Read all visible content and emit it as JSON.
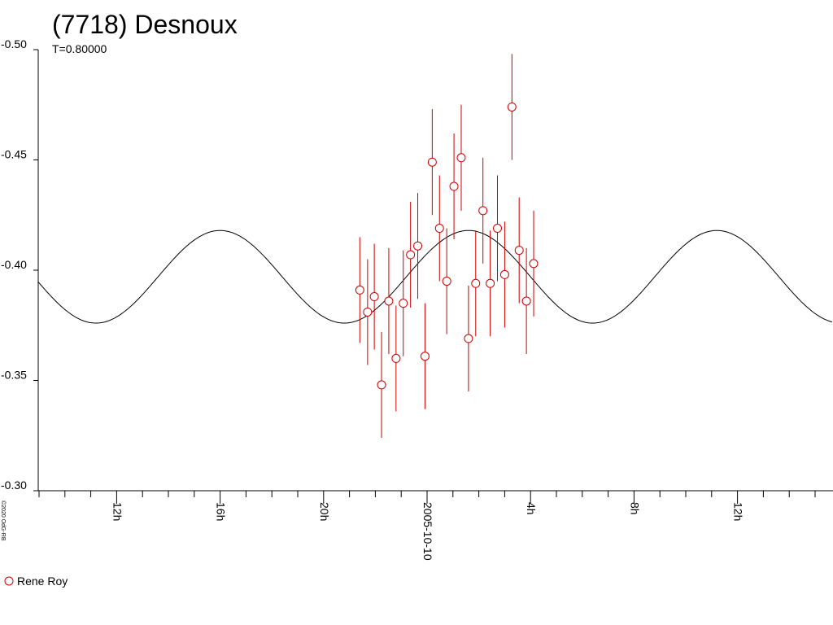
{
  "chart_data": {
    "type": "scatter",
    "title": "(7718) Desnoux",
    "subtitle": "T=0.80000",
    "credit": "©2020 OdG-RB",
    "y_axis": {
      "min": -0.3,
      "max": -0.5,
      "inverted": true,
      "ticks": [
        {
          "value": -0.5,
          "label": "-0.50"
        },
        {
          "value": -0.45,
          "label": "-0.45"
        },
        {
          "value": -0.4,
          "label": "-0.40"
        },
        {
          "value": -0.35,
          "label": "-0.35"
        },
        {
          "value": -0.3,
          "label": "-0.30"
        }
      ]
    },
    "x_axis": {
      "min_hours": 9.0,
      "max_hours": 39.75,
      "minor_tick_step_hours": 1,
      "labels": [
        {
          "hours": 12,
          "label": "12h"
        },
        {
          "hours": 16,
          "label": "16h"
        },
        {
          "hours": 20,
          "label": "20h"
        },
        {
          "hours": 24,
          "label": "2005-10-10"
        },
        {
          "hours": 28,
          "label": "4h"
        },
        {
          "hours": 32,
          "label": "8h"
        },
        {
          "hours": 36,
          "label": "12h"
        }
      ]
    },
    "model_curve": {
      "type": "sine",
      "mean": -0.397,
      "amplitude": 0.021,
      "period_hours": 9.6,
      "peak_hours": 16.0
    },
    "series": [
      {
        "name": "Rene Roy",
        "color": "#cc0000",
        "marker": "open-circle",
        "points": [
          {
            "x": 21.4,
            "y": -0.391,
            "err": 0.024
          },
          {
            "x": 21.7,
            "y": -0.381,
            "err": 0.024
          },
          {
            "x": 21.96,
            "y": -0.388,
            "err": 0.024
          },
          {
            "x": 22.24,
            "y": -0.348,
            "err": 0.024
          },
          {
            "x": 22.52,
            "y": -0.386,
            "err": 0.024
          },
          {
            "x": 22.8,
            "y": -0.36,
            "err": 0.024
          },
          {
            "x": 23.08,
            "y": -0.385,
            "err": 0.024
          },
          {
            "x": 23.36,
            "y": -0.407,
            "err": 0.024
          },
          {
            "x": 23.64,
            "y": -0.411,
            "err": 0.024
          },
          {
            "x": 23.92,
            "y": -0.361,
            "err": 0.024
          },
          {
            "x": 24.2,
            "y": -0.449,
            "err": 0.024
          },
          {
            "x": 24.48,
            "y": -0.419,
            "err": 0.024
          },
          {
            "x": 24.76,
            "y": -0.395,
            "err": 0.024
          },
          {
            "x": 25.04,
            "y": -0.438,
            "err": 0.024
          },
          {
            "x": 25.32,
            "y": -0.451,
            "err": 0.024
          },
          {
            "x": 25.6,
            "y": -0.369,
            "err": 0.024
          },
          {
            "x": 25.88,
            "y": -0.394,
            "err": 0.024
          },
          {
            "x": 26.16,
            "y": -0.427,
            "err": 0.024
          },
          {
            "x": 26.44,
            "y": -0.394,
            "err": 0.024
          },
          {
            "x": 26.72,
            "y": -0.419,
            "err": 0.024
          },
          {
            "x": 27.0,
            "y": -0.398,
            "err": 0.024
          },
          {
            "x": 27.28,
            "y": -0.474,
            "err": 0.024
          },
          {
            "x": 27.56,
            "y": -0.409,
            "err": 0.024
          },
          {
            "x": 27.84,
            "y": -0.386,
            "err": 0.024
          },
          {
            "x": 28.12,
            "y": -0.403,
            "err": 0.024
          }
        ]
      }
    ],
    "legend": {
      "placement": "bottom-left",
      "entries": [
        "Rene Roy"
      ]
    }
  }
}
